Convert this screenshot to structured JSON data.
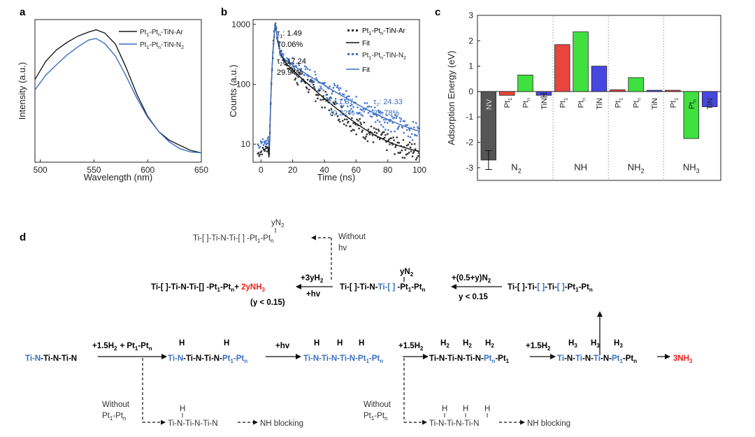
{
  "panel_labels": {
    "a": "a",
    "b": "b",
    "c": "c",
    "d": "d"
  },
  "colors": {
    "black": "#1a1a1a",
    "blue": "#3a6fc0",
    "red": "#e8453c",
    "green": "#3fe03f",
    "violet": "#4747e0",
    "gray": "#555555",
    "highlight": "#e8231c"
  },
  "chart_data": [
    {
      "id": "a",
      "type": "line",
      "title": "",
      "xlabel": "Wavelength (nm)",
      "ylabel": "Intensity (a.u.)",
      "xlim": [
        495,
        650
      ],
      "xticks": [
        "500",
        "550",
        "600",
        "650"
      ],
      "x": [
        495,
        505,
        515,
        525,
        535,
        545,
        552,
        560,
        570,
        580,
        590,
        600,
        610,
        620,
        630,
        640,
        650
      ],
      "series": [
        {
          "name": "Pt1-Ptn-TiN-Ar",
          "label_main": "Pt",
          "label_tail": "-Pt",
          "label_end": "-TiN-Ar",
          "sub1": "1",
          "sub2": "n",
          "color": "#1a1a1a",
          "values": [
            0.58,
            0.7,
            0.78,
            0.84,
            0.89,
            0.92,
            0.93,
            0.9,
            0.82,
            0.66,
            0.48,
            0.33,
            0.22,
            0.15,
            0.11,
            0.08,
            0.07
          ]
        },
        {
          "name": "Pt1-Ptn-TiN-N2",
          "label_main": "Pt",
          "label_tail": "-Pt",
          "label_end": "-TiN-N",
          "sub1": "1",
          "sub2": "n",
          "sub3": "2",
          "color": "#3a6fc0",
          "values": [
            0.5,
            0.61,
            0.69,
            0.76,
            0.81,
            0.85,
            0.86,
            0.83,
            0.75,
            0.61,
            0.45,
            0.31,
            0.21,
            0.14,
            0.1,
            0.08,
            0.07
          ]
        }
      ]
    },
    {
      "id": "b",
      "type": "scatter",
      "title": "",
      "xlabel": "Time (ns)",
      "ylabel": "Counts (a.u.)",
      "xlim": [
        -5,
        100
      ],
      "ylim_log": [
        5,
        1200
      ],
      "xticks": [
        "0",
        "20",
        "40",
        "60",
        "80",
        "100"
      ],
      "yticks": [
        "10",
        "100",
        "1000"
      ],
      "legend": [
        "Pt1-Ptn-TiN-Ar",
        "Fit",
        "Pt1-Ptn-TiN-N2",
        "Fit"
      ],
      "legend_fit": "Fit",
      "ar": {
        "amp": 1050,
        "tau1": 1.49,
        "a1": 0.7006,
        "tau2": 17.24,
        "a2": 0.2994,
        "t0": 9,
        "bg": 6
      },
      "n2": {
        "amp": 1050,
        "tau1": 1.37,
        "a1": 0.7022,
        "tau2": 24.33,
        "a2": 0.2978,
        "t0": 9,
        "bg": 9
      },
      "ann_black": {
        "tau1_label": "τ",
        "tau1_sub": "1",
        "tau1_val": ": 1.49",
        "pct1": "70.06%",
        "tau2_label": "τ",
        "tau2_sub": "2",
        "tau2_val": ": 17.24",
        "pct2": "29.94%"
      },
      "ann_blue": {
        "tau1_label": "τ",
        "tau1_sub": "1",
        "tau1_val": ": 1.37",
        "pct1": "70.22%",
        "tau2_label": "τ",
        "tau2_sub": "2",
        "tau2_val": ": 24.33",
        "pct2": "29.78%"
      }
    },
    {
      "id": "c",
      "type": "bar",
      "title": "",
      "ylabel": "Adsorption Energy (eV)",
      "ylim": [
        -3.5,
        3
      ],
      "yticks": [
        "-3",
        "-2",
        "-1",
        "0",
        "1",
        "2",
        "3"
      ],
      "groups": [
        {
          "name": "N",
          "sub": "2",
          "bars": [
            {
              "label": "NV",
              "value": -2.7,
              "color": "#555555",
              "err": 0.45
            },
            {
              "label": "Pt",
              "sub": "1",
              "value": -0.15,
              "color": "#e8453c"
            },
            {
              "label": "Pt",
              "sub": "n",
              "value": 0.65,
              "color": "#3fe03f"
            },
            {
              "label": "TiN",
              "value": -0.15,
              "color": "#4747e0",
              "err": 0.08
            }
          ]
        },
        {
          "name": "NH",
          "bars": [
            {
              "label": "Pt",
              "sub": "1",
              "value": 1.85,
              "color": "#e8453c"
            },
            {
              "label": "Pt",
              "sub": "n",
              "value": 2.35,
              "color": "#3fe03f"
            },
            {
              "label": "TiN",
              "value": 1.0,
              "color": "#4747e0"
            }
          ]
        },
        {
          "name": "NH",
          "sub": "2",
          "bars": [
            {
              "label": "Pt",
              "sub": "1",
              "value": 0.07,
              "color": "#e8453c"
            },
            {
              "label": "Pt",
              "sub": "n",
              "value": 0.55,
              "color": "#3fe03f"
            },
            {
              "label": "TiN",
              "value": 0.05,
              "color": "#4747e0"
            }
          ]
        },
        {
          "name": "NH",
          "sub": "3",
          "bars": [
            {
              "label": "Pt",
              "sub": "1",
              "value": 0.05,
              "color": "#e8453c"
            },
            {
              "label": "Pt",
              "sub": "n",
              "value": -1.85,
              "color": "#3fe03f"
            },
            {
              "label": "TiN",
              "value": -0.6,
              "color": "#4747e0"
            }
          ]
        }
      ]
    }
  ],
  "scheme": {
    "top_yN2": "yN",
    "top_yN2_sub": "2",
    "top_formula": "Ti-[ ]-Ti-N-Ti-[ ] -Pt",
    "top_formula_s1": "1",
    "top_formula_mid": "-Pt",
    "top_formula_s2": "n",
    "without_hv_1": "Without",
    "without_hv_2": "hv",
    "row2_left_formula": "Ti-[ ]-Ti-N-Ti-[] -Pt",
    "row2_left_s1": "1",
    "row2_left_mid": "-Pt",
    "row2_left_s2": "n",
    "row2_plus": "+ ",
    "row2_product": "2yNH",
    "row2_product_sub": "3",
    "row2_cond": "(y < 0.15)",
    "arrow_h2_top": "+3yH",
    "arrow_h2_sub": "2",
    "arrow_h2_bottom": "+hv",
    "row2_mid_yN2": "yN",
    "row2_mid_yN2_sub": "2",
    "row2_mid_black": "Ti-[ ]-Ti-N-",
    "row2_mid_blue": "Ti-[ ]",
    "row2_mid_tail": " -Pt",
    "row2_mid_s1": "1",
    "row2_mid_tail2": "-Pt",
    "row2_mid_s2": "n",
    "arrow_n2_top": "+(0.5+y)N",
    "arrow_n2_sub": "2",
    "arrow_n2_bottom": "y < 0.15",
    "row2_right_black": "Ti-[ ]-Ti-",
    "row2_right_blue1": "[ ]",
    "row2_right_mid": "-Ti-",
    "row2_right_blue2": "[ ]",
    "row2_right_tail": "-Pt",
    "row2_right_s1": "1",
    "row2_right_tail2": "-Pt",
    "row2_right_s2": "n",
    "main_start_blue": "Ti-N",
    "main_start_black": "-Ti-N-Ti-N",
    "step1_h2": "+1.5H",
    "step1_h2_sub": "2",
    "step1_pt": "+ Pt",
    "step1_pt_s1": "1",
    "step1_pt_mid": "-Pt",
    "step1_pt_s2": "n",
    "int1_h": "H",
    "int1_blue": "Ti-N",
    "int1_black": "-Ti-N-Ti-N-",
    "int1_blue2": "Pt",
    "int1_s1": "1",
    "int1_mid": "-Pt",
    "int1_s2": "n",
    "step2_label": "+hv",
    "int2_h": "H",
    "int2_blue": "Ti-N-Ti-N-Ti-N-Pt",
    "int2_s1": "1",
    "int2_mid": "-Pt",
    "int2_s2": "n",
    "step3_h2": "+1.5H",
    "step3_h2_sub": "2",
    "int3_h": "H",
    "int3_h_sub": "2",
    "int3_black": "Ti-N-Ti-N-Ti-N-",
    "int3_blue": "Pt",
    "int3_s2": "n",
    "int3_tail": "-Pt",
    "int3_s1": "1",
    "step4_h2": "+1.5H",
    "step4_h2_sub": "2",
    "int4_h": "H",
    "int4_h_sub": "3",
    "int4_blue1": "Ti",
    "int4_black1": "-N-",
    "int4_blue2": "Ti",
    "int4_black2": "-N-",
    "int4_blue3": "Ti",
    "int4_black3": "-N-",
    "int4_blue4": "Pt",
    "int4_s1": "1",
    "int4_tail": "-Pt",
    "int4_s2": "n",
    "product": "3NH",
    "product_sub": "3",
    "without_pt_1": "Without",
    "without_pt_2": "Pt",
    "without_pt_s1": "1",
    "without_pt_mid": "-Pt",
    "without_pt_s2": "n",
    "branch1_h": "H",
    "branch1_formula": "Ti-N-Ti-N-Ti-N",
    "branch_result": "NH blocking",
    "branch2_formula": "Ti-N-Ti-N-Ti-N"
  }
}
